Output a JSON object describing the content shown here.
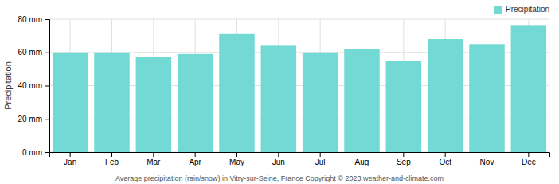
{
  "chart_data": {
    "type": "bar",
    "categories": [
      "Jan",
      "Feb",
      "Mar",
      "Apr",
      "May",
      "Jun",
      "Jul",
      "Aug",
      "Sep",
      "Oct",
      "Nov",
      "Dec"
    ],
    "series": [
      {
        "name": "Precipitation",
        "color": "#72d9d4",
        "values": [
          60,
          60,
          57,
          59,
          71,
          64,
          60,
          62,
          55,
          68,
          65,
          76
        ]
      }
    ],
    "y_label": "Precipitation",
    "ylim": [
      0,
      80
    ],
    "yticks": [
      {
        "value": 0,
        "label": "0 mm"
      },
      {
        "value": 20,
        "label": "20 mm"
      },
      {
        "value": 40,
        "label": "40 mm"
      },
      {
        "value": 60,
        "label": "60 mm"
      },
      {
        "value": 80,
        "label": "80 mm"
      }
    ],
    "grid": true,
    "legend": "upper right",
    "annotations": [
      "Average precipitation (rain/snow) in Vitry-sur-Seine, France   Copyright © 2023  weather-and-climate.com"
    ]
  }
}
